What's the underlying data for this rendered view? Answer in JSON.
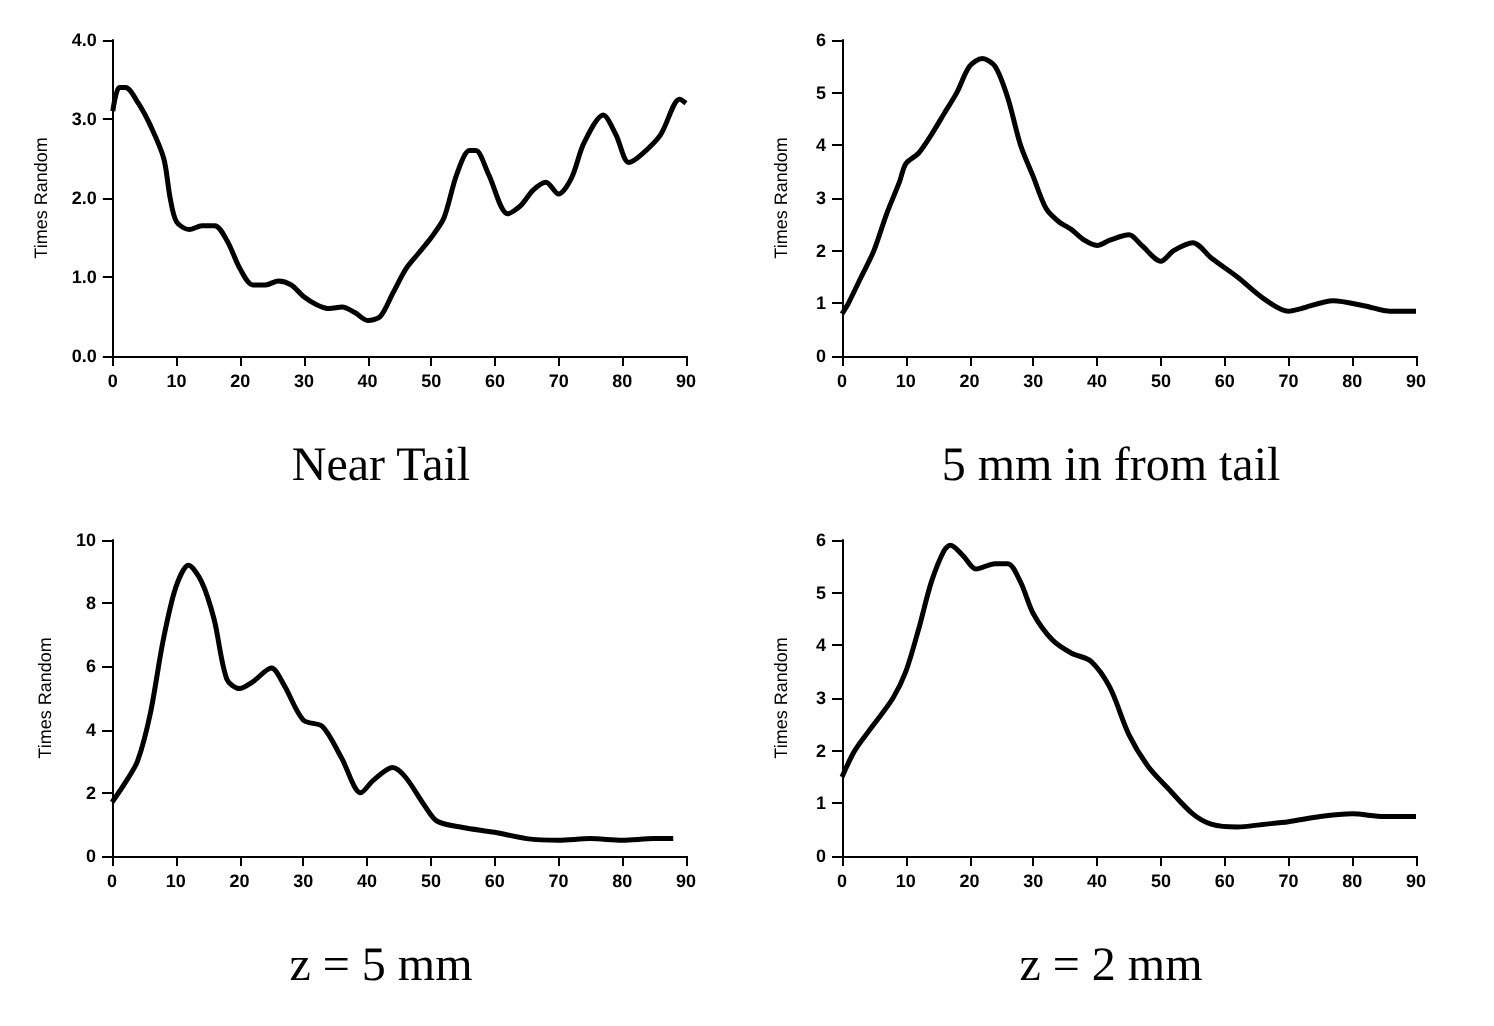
{
  "chart_data": [
    {
      "type": "line",
      "title": "Near Tail",
      "ylabel": "Times Random",
      "color": "#000000",
      "xlim": [
        0,
        90
      ],
      "xticks": [
        0,
        10,
        20,
        30,
        40,
        50,
        60,
        70,
        80,
        90
      ],
      "ylim": [
        0,
        4
      ],
      "yticks": [
        {
          "value": 0,
          "label": "0.0"
        },
        {
          "value": 1,
          "label": "1.0"
        },
        {
          "value": 2,
          "label": "2.0"
        },
        {
          "value": 3,
          "label": "3.0"
        },
        {
          "value": 4,
          "label": "4.0"
        }
      ],
      "grid": false,
      "marker": "none",
      "x": [
        0,
        1,
        2,
        4,
        6,
        8,
        9,
        10,
        12,
        14,
        16,
        18,
        20,
        22,
        24,
        26,
        28,
        30,
        32,
        34,
        36,
        38,
        40,
        42,
        44,
        46,
        48,
        50,
        52,
        54,
        56,
        57,
        59,
        62,
        64,
        66,
        68,
        70,
        72,
        74,
        77,
        79,
        81,
        83,
        86,
        89,
        90
      ],
      "values": [
        3.1,
        3.4,
        3.4,
        3.2,
        2.9,
        2.5,
        2.0,
        1.7,
        1.6,
        1.65,
        1.65,
        1.45,
        1.1,
        0.9,
        0.9,
        0.95,
        0.9,
        0.75,
        0.65,
        0.6,
        0.62,
        0.55,
        0.45,
        0.5,
        0.8,
        1.1,
        1.3,
        1.5,
        1.75,
        2.3,
        2.6,
        2.6,
        2.3,
        1.8,
        1.9,
        2.1,
        2.2,
        2.05,
        2.25,
        2.7,
        3.05,
        2.8,
        2.45,
        2.55,
        2.8,
        3.25,
        3.2
      ]
    },
    {
      "type": "line",
      "title": "5 mm in from tail",
      "ylabel": "Times Random",
      "color": "#000000",
      "xlim": [
        0,
        90
      ],
      "xticks": [
        0,
        10,
        20,
        30,
        40,
        50,
        60,
        70,
        80,
        90
      ],
      "ylim": [
        0,
        6
      ],
      "yticks": [
        0,
        1,
        2,
        3,
        4,
        5,
        6
      ],
      "grid": false,
      "marker": "none",
      "x": [
        0,
        1,
        3,
        5,
        7,
        9,
        10,
        12,
        14,
        16,
        18,
        20,
        22,
        24,
        26,
        28,
        30,
        32,
        34,
        36,
        38,
        40,
        42,
        45,
        47,
        50,
        52,
        55,
        58,
        62,
        66,
        70,
        72,
        77,
        82,
        86,
        90
      ],
      "values": [
        0.8,
        1.0,
        1.5,
        2.0,
        2.7,
        3.3,
        3.65,
        3.85,
        4.2,
        4.6,
        5.0,
        5.5,
        5.65,
        5.5,
        4.9,
        4.0,
        3.4,
        2.8,
        2.55,
        2.4,
        2.2,
        2.1,
        2.2,
        2.3,
        2.1,
        1.8,
        2.0,
        2.15,
        1.85,
        1.5,
        1.1,
        0.85,
        0.9,
        1.05,
        0.95,
        0.85,
        0.85
      ]
    },
    {
      "type": "line",
      "title": "z = 5 mm",
      "ylabel": "Times Random",
      "color": "#000000",
      "xlim": [
        0,
        90
      ],
      "xticks": [
        0,
        10,
        20,
        30,
        40,
        50,
        60,
        70,
        80,
        90
      ],
      "ylim": [
        0,
        10
      ],
      "yticks": [
        0,
        2,
        4,
        6,
        8,
        10
      ],
      "grid": false,
      "marker": "none",
      "x": [
        0,
        2,
        4,
        6,
        8,
        10,
        12,
        14,
        16,
        18,
        20,
        22,
        25,
        27,
        30,
        33,
        36,
        39,
        41,
        44,
        46,
        49,
        51,
        55,
        60,
        65,
        70,
        75,
        80,
        85,
        88
      ],
      "values": [
        1.7,
        2.3,
        3.0,
        4.5,
        6.8,
        8.5,
        9.2,
        8.7,
        7.5,
        5.6,
        5.3,
        5.5,
        5.95,
        5.4,
        4.3,
        4.1,
        3.1,
        2.0,
        2.4,
        2.8,
        2.5,
        1.6,
        1.1,
        0.9,
        0.75,
        0.55,
        0.5,
        0.55,
        0.5,
        0.55,
        0.55
      ]
    },
    {
      "type": "line",
      "title": "z = 2 mm",
      "ylabel": "Times Random",
      "color": "#000000",
      "xlim": [
        0,
        90
      ],
      "xticks": [
        0,
        10,
        20,
        30,
        40,
        50,
        60,
        70,
        80,
        90
      ],
      "ylim": [
        0,
        6
      ],
      "yticks": [
        0,
        1,
        2,
        3,
        4,
        5,
        6
      ],
      "grid": false,
      "marker": "none",
      "x": [
        0,
        2,
        5,
        8,
        10,
        12,
        14,
        16,
        17,
        19,
        21,
        24,
        26,
        28,
        30,
        33,
        36,
        39,
        42,
        45,
        48,
        51,
        55,
        58,
        62,
        66,
        70,
        75,
        80,
        85,
        90
      ],
      "values": [
        1.5,
        2.0,
        2.5,
        3.0,
        3.5,
        4.3,
        5.2,
        5.8,
        5.9,
        5.7,
        5.45,
        5.55,
        5.55,
        5.2,
        4.6,
        4.1,
        3.85,
        3.7,
        3.2,
        2.3,
        1.7,
        1.3,
        0.8,
        0.6,
        0.55,
        0.6,
        0.65,
        0.75,
        0.8,
        0.75,
        0.75
      ]
    }
  ]
}
